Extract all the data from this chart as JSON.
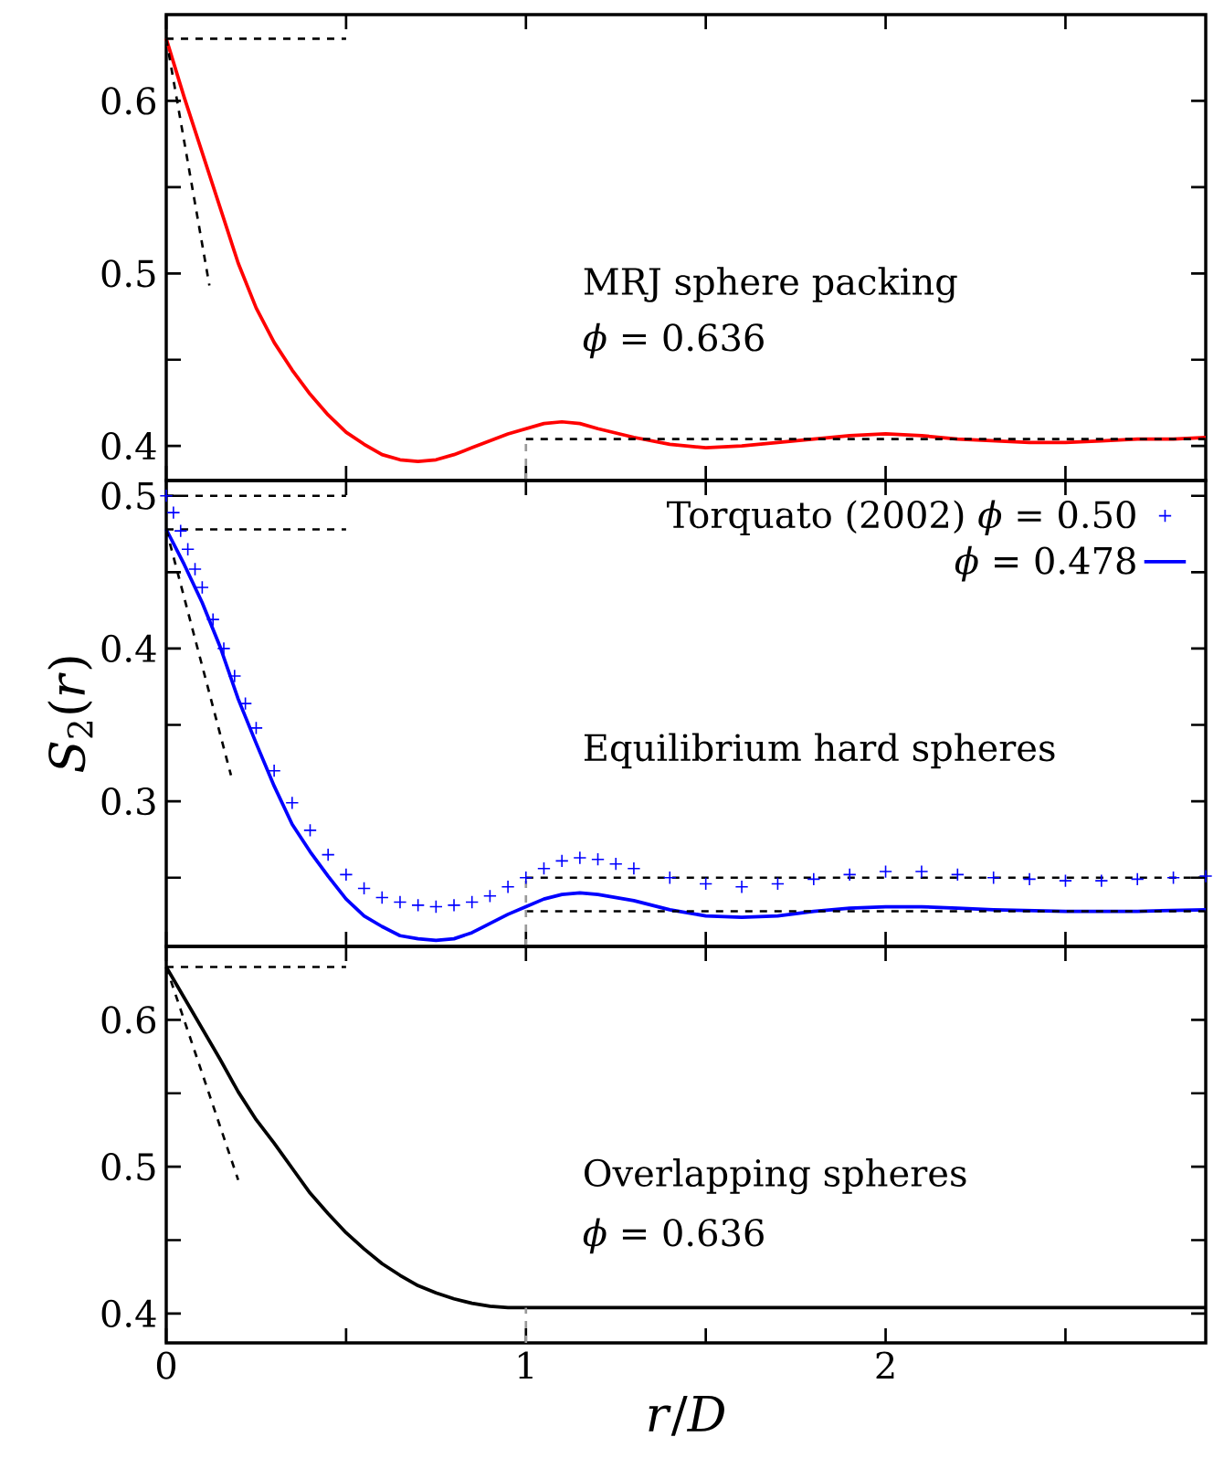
{
  "chart_data": [
    {
      "type": "line",
      "xlim": [
        0,
        2.89
      ],
      "ylim": [
        0.38,
        0.65
      ],
      "tick_labels": "y",
      "xticks": [
        0,
        {
          "value": 0.5,
          "label": null
        },
        1,
        {
          "value": 1.5,
          "label": null
        },
        2,
        {
          "value": 2.5,
          "label": null
        }
      ],
      "yticks": [
        0.4,
        {
          "value": 0.45,
          "label": null
        },
        0.5,
        {
          "value": 0.55,
          "label": null
        },
        0.6
      ],
      "annotations": [
        "MRJ sphere packing",
        "*ϕ* = 0.636"
      ],
      "series": [
        {
          "color": "#ff0000",
          "line_style": "solid",
          "x": [
            0,
            0.05,
            0.1,
            0.15,
            0.2,
            0.25,
            0.3,
            0.35,
            0.4,
            0.45,
            0.5,
            0.55,
            0.6,
            0.65,
            0.7,
            0.75,
            0.8,
            0.85,
            0.9,
            0.95,
            1.0,
            1.05,
            1.1,
            1.15,
            1.2,
            1.3,
            1.4,
            1.5,
            1.6,
            1.7,
            1.8,
            1.9,
            2.0,
            2.1,
            2.2,
            2.3,
            2.4,
            2.5,
            2.6,
            2.7,
            2.8,
            2.89
          ],
          "values": [
            0.636,
            0.602,
            0.57,
            0.538,
            0.506,
            0.48,
            0.46,
            0.444,
            0.43,
            0.418,
            0.408,
            0.401,
            0.395,
            0.392,
            0.391,
            0.392,
            0.395,
            0.399,
            0.403,
            0.407,
            0.41,
            0.413,
            0.414,
            0.413,
            0.41,
            0.405,
            0.401,
            0.399,
            0.4,
            0.402,
            0.404,
            0.406,
            0.407,
            0.406,
            0.404,
            0.403,
            0.402,
            0.402,
            0.403,
            0.404,
            0.404,
            0.405
          ]
        },
        {
          "color": "#000000",
          "line_style": "dashed",
          "x": [
            0,
            0.5
          ],
          "values": [
            0.636,
            0.636
          ]
        },
        {
          "color": "#000000",
          "line_style": "dashed",
          "x": [
            0,
            0.12
          ],
          "values": [
            0.636,
            0.493
          ]
        },
        {
          "color": "#000000",
          "line_style": "dashed",
          "x": [
            1,
            2.89
          ],
          "values": [
            0.404,
            0.404
          ]
        },
        {
          "color": "#999999",
          "line_style": "dashed",
          "x": [
            1,
            1
          ],
          "values": [
            0.38,
            0.404
          ]
        }
      ]
    },
    {
      "type": "line",
      "xlim": [
        0,
        2.89
      ],
      "ylim": [
        0.205,
        0.51
      ],
      "tick_labels": "y",
      "ylabel": "*S*$_{2}$(*r*)",
      "legend": "top right",
      "marker": "none",
      "xticks": [
        0,
        {
          "value": 0.5,
          "label": null
        },
        1,
        {
          "value": 1.5,
          "label": null
        },
        2,
        {
          "value": 2.5,
          "label": null
        }
      ],
      "yticks": [
        {
          "value": 0.25,
          "label": null
        },
        0.3,
        {
          "value": 0.35,
          "label": null
        },
        0.4,
        {
          "value": 0.45,
          "label": null
        },
        0.5
      ],
      "annotations": [
        "Equilibrium hard spheres"
      ],
      "series": [
        {
          "name": "Torquato (2002) *ϕ* = 0.50",
          "type": "scatter",
          "marker": "cross",
          "color": "#0000ff",
          "x": [
            0,
            0.02,
            0.04,
            0.06,
            0.08,
            0.1,
            0.13,
            0.16,
            0.19,
            0.22,
            0.25,
            0.3,
            0.35,
            0.4,
            0.45,
            0.5,
            0.55,
            0.6,
            0.65,
            0.7,
            0.75,
            0.8,
            0.85,
            0.9,
            0.95,
            1.0,
            1.05,
            1.1,
            1.15,
            1.2,
            1.25,
            1.3,
            1.4,
            1.5,
            1.6,
            1.7,
            1.8,
            1.9,
            2.0,
            2.1,
            2.2,
            2.3,
            2.4,
            2.5,
            2.6,
            2.7,
            2.8,
            2.89
          ],
          "values": [
            0.5,
            0.489,
            0.477,
            0.465,
            0.452,
            0.44,
            0.419,
            0.4,
            0.382,
            0.364,
            0.348,
            0.32,
            0.299,
            0.281,
            0.265,
            0.252,
            0.243,
            0.237,
            0.234,
            0.232,
            0.231,
            0.232,
            0.234,
            0.238,
            0.244,
            0.25,
            0.256,
            0.261,
            0.263,
            0.262,
            0.259,
            0.256,
            0.25,
            0.246,
            0.244,
            0.246,
            0.249,
            0.252,
            0.254,
            0.254,
            0.252,
            0.25,
            0.249,
            0.248,
            0.248,
            0.249,
            0.25,
            0.251
          ]
        },
        {
          "name": "*ϕ* = 0.478",
          "color": "#0000ff",
          "line_style": "solid",
          "x": [
            0,
            0.05,
            0.1,
            0.15,
            0.2,
            0.25,
            0.3,
            0.35,
            0.4,
            0.45,
            0.5,
            0.55,
            0.6,
            0.65,
            0.7,
            0.75,
            0.8,
            0.85,
            0.9,
            0.95,
            1.0,
            1.05,
            1.1,
            1.15,
            1.2,
            1.3,
            1.4,
            1.5,
            1.6,
            1.7,
            1.8,
            1.9,
            2.0,
            2.1,
            2.2,
            2.3,
            2.5,
            2.7,
            2.89
          ],
          "values": [
            0.478,
            0.455,
            0.43,
            0.401,
            0.367,
            0.338,
            0.31,
            0.285,
            0.267,
            0.251,
            0.236,
            0.225,
            0.218,
            0.212,
            0.21,
            0.209,
            0.21,
            0.214,
            0.22,
            0.226,
            0.231,
            0.236,
            0.239,
            0.24,
            0.239,
            0.235,
            0.229,
            0.225,
            0.224,
            0.225,
            0.228,
            0.23,
            0.231,
            0.231,
            0.23,
            0.229,
            0.228,
            0.228,
            0.229
          ]
        },
        {
          "color": "#000000",
          "line_style": "dashed",
          "x": [
            0,
            0.5
          ],
          "values": [
            0.5,
            0.5
          ]
        },
        {
          "color": "#000000",
          "line_style": "dashed",
          "x": [
            0,
            0.5
          ],
          "values": [
            0.478,
            0.478
          ]
        },
        {
          "color": "#000000",
          "line_style": "dashed",
          "x": [
            0,
            0.18
          ],
          "values": [
            0.478,
            0.317
          ]
        },
        {
          "color": "#000000",
          "line_style": "dashed",
          "x": [
            1,
            2.89
          ],
          "values": [
            0.25,
            0.25
          ]
        },
        {
          "color": "#000000",
          "line_style": "dashed",
          "x": [
            1,
            2.89
          ],
          "values": [
            0.228,
            0.228
          ]
        },
        {
          "color": "#999999",
          "line_style": "dashed",
          "x": [
            1,
            1
          ],
          "values": [
            0.205,
            0.25
          ]
        }
      ]
    },
    {
      "type": "line",
      "xlim": [
        0,
        2.89
      ],
      "ylim": [
        0.38,
        0.65
      ],
      "xlabel": "*r*/*D*",
      "xticks": [
        0,
        {
          "value": 0.5,
          "label": null
        },
        1,
        {
          "value": 1.5,
          "label": null
        },
        2,
        {
          "value": 2.5,
          "label": null
        }
      ],
      "yticks": [
        0.4,
        {
          "value": 0.45,
          "label": null
        },
        0.5,
        {
          "value": 0.55,
          "label": null
        },
        0.6
      ],
      "annotations": [
        "Overlapping spheres",
        "*ϕ* = 0.636"
      ],
      "series": [
        {
          "color": "#000000",
          "line_style": "solid",
          "x": [
            0,
            0.05,
            0.1,
            0.15,
            0.2,
            0.25,
            0.3,
            0.35,
            0.4,
            0.45,
            0.5,
            0.55,
            0.6,
            0.65,
            0.7,
            0.75,
            0.8,
            0.85,
            0.9,
            0.95,
            1.0,
            2.89
          ],
          "values": [
            0.636,
            0.615,
            0.594,
            0.573,
            0.551,
            0.532,
            0.516,
            0.499,
            0.482,
            0.468,
            0.455,
            0.444,
            0.434,
            0.426,
            0.419,
            0.414,
            0.41,
            0.407,
            0.405,
            0.404,
            0.404,
            0.404
          ]
        },
        {
          "color": "#000000",
          "line_style": "dashed",
          "x": [
            0,
            0.5
          ],
          "values": [
            0.636,
            0.636
          ]
        },
        {
          "color": "#000000",
          "line_style": "dashed",
          "x": [
            0,
            0.2
          ],
          "values": [
            0.636,
            0.491
          ]
        },
        {
          "color": "#999999",
          "line_style": "dashed",
          "x": [
            1,
            1
          ],
          "values": [
            0.38,
            0.404
          ]
        }
      ]
    }
  ]
}
